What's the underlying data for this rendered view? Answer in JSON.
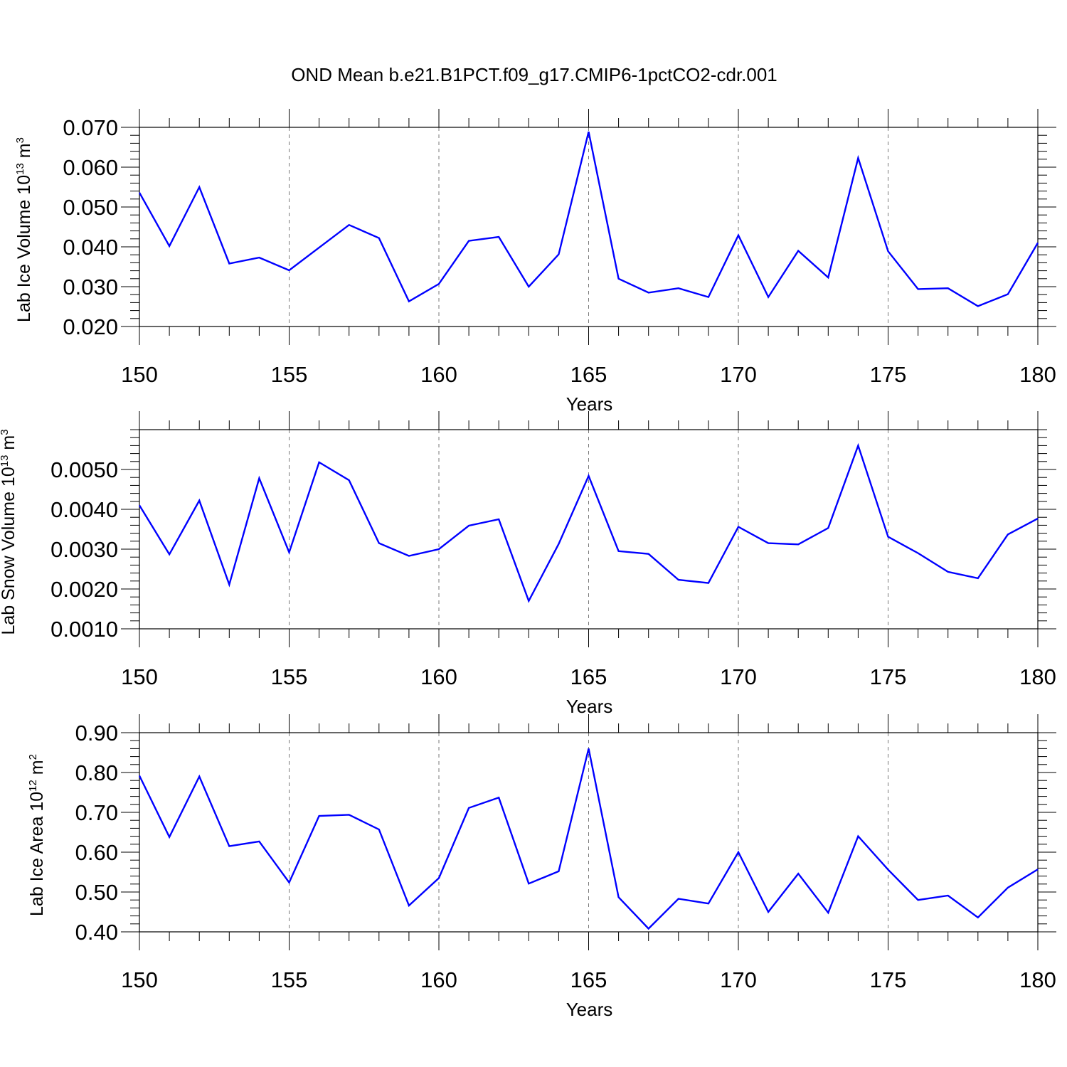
{
  "title": "OND Mean b.e21.B1PCT.f09_g17.CMIP6-1pctCO2-cdr.001",
  "colors": {
    "line": "#0000ff",
    "grid": "#777777",
    "axis": "#000000"
  },
  "chart_data": [
    {
      "type": "line",
      "ylabel": {
        "prefix": "Lab Ice Volume 10",
        "exponent": "13",
        "unit": " m",
        "unit_exponent": "3"
      },
      "xlabel": "Years",
      "xlim": [
        150,
        180
      ],
      "ylim": [
        0.02,
        0.07
      ],
      "x_ticks": [
        150,
        155,
        160,
        165,
        170,
        175,
        180
      ],
      "y_ticks": [
        0.02,
        0.03,
        0.04,
        0.05,
        0.06,
        0.07
      ],
      "y_tick_labels": [
        "0.020",
        "0.030",
        "0.040",
        "0.050",
        "0.060",
        "0.070"
      ],
      "grid": "vertical dashed at major x ticks",
      "x": [
        150,
        151,
        152,
        153,
        154,
        155,
        156,
        157,
        158,
        159,
        160,
        161,
        162,
        163,
        164,
        165,
        166,
        167,
        168,
        169,
        170,
        171,
        172,
        173,
        174,
        175,
        176,
        177,
        178,
        179,
        180
      ],
      "values": [
        0.0536,
        0.0402,
        0.055,
        0.0358,
        0.0373,
        0.0341,
        0.0398,
        0.0455,
        0.0422,
        0.0263,
        0.0307,
        0.0415,
        0.0425,
        0.03,
        0.0381,
        0.0689,
        0.032,
        0.0285,
        0.0296,
        0.0274,
        0.0429,
        0.0274,
        0.039,
        0.0323,
        0.0623,
        0.0389,
        0.0294,
        0.0296,
        0.0251,
        0.0281,
        0.041
      ]
    },
    {
      "type": "line",
      "ylabel": {
        "prefix": "Lab Snow Volume 10",
        "exponent": "13",
        "unit": " m",
        "unit_exponent": "3"
      },
      "xlabel": "Years",
      "xlim": [
        150,
        180
      ],
      "ylim": [
        0.001,
        0.006
      ],
      "x_ticks": [
        150,
        155,
        160,
        165,
        170,
        175,
        180
      ],
      "y_ticks": [
        0.001,
        0.002,
        0.003,
        0.004,
        0.005
      ],
      "y_tick_labels": [
        "0.0010",
        "0.0020",
        "0.0030",
        "0.0040",
        "0.0050"
      ],
      "grid": "vertical dashed at major x ticks",
      "x": [
        150,
        151,
        152,
        153,
        154,
        155,
        156,
        157,
        158,
        159,
        160,
        161,
        162,
        163,
        164,
        165,
        166,
        167,
        168,
        169,
        170,
        171,
        172,
        173,
        174,
        175,
        176,
        177,
        178,
        179,
        180
      ],
      "values": [
        0.0041,
        0.00287,
        0.00422,
        0.00211,
        0.00478,
        0.00292,
        0.00518,
        0.00473,
        0.00315,
        0.00283,
        0.003,
        0.00359,
        0.00375,
        0.0017,
        0.00313,
        0.00484,
        0.00295,
        0.00288,
        0.00223,
        0.00215,
        0.00356,
        0.00315,
        0.00312,
        0.00353,
        0.0056,
        0.00331,
        0.0029,
        0.00243,
        0.00227,
        0.00337,
        0.00377
      ]
    },
    {
      "type": "line",
      "ylabel": {
        "prefix": "Lab Ice Area 10",
        "exponent": "12",
        "unit": " m",
        "unit_exponent": "2"
      },
      "xlabel": "Years",
      "xlim": [
        150,
        180
      ],
      "ylim": [
        0.4,
        0.9
      ],
      "x_ticks": [
        150,
        155,
        160,
        165,
        170,
        175,
        180
      ],
      "y_ticks": [
        0.4,
        0.5,
        0.6,
        0.7,
        0.8,
        0.9
      ],
      "y_tick_labels": [
        "0.40",
        "0.50",
        "0.60",
        "0.70",
        "0.80",
        "0.90"
      ],
      "grid": "vertical dashed at major x ticks",
      "x": [
        150,
        151,
        152,
        153,
        154,
        155,
        156,
        157,
        158,
        159,
        160,
        161,
        162,
        163,
        164,
        165,
        166,
        167,
        168,
        169,
        170,
        171,
        172,
        173,
        174,
        175,
        176,
        177,
        178,
        179,
        180
      ],
      "values": [
        0.792,
        0.638,
        0.79,
        0.615,
        0.627,
        0.524,
        0.691,
        0.694,
        0.657,
        0.466,
        0.535,
        0.711,
        0.737,
        0.521,
        0.552,
        0.86,
        0.487,
        0.408,
        0.483,
        0.471,
        0.6,
        0.45,
        0.546,
        0.448,
        0.64,
        0.556,
        0.48,
        0.491,
        0.436,
        0.511,
        0.557
      ]
    }
  ]
}
